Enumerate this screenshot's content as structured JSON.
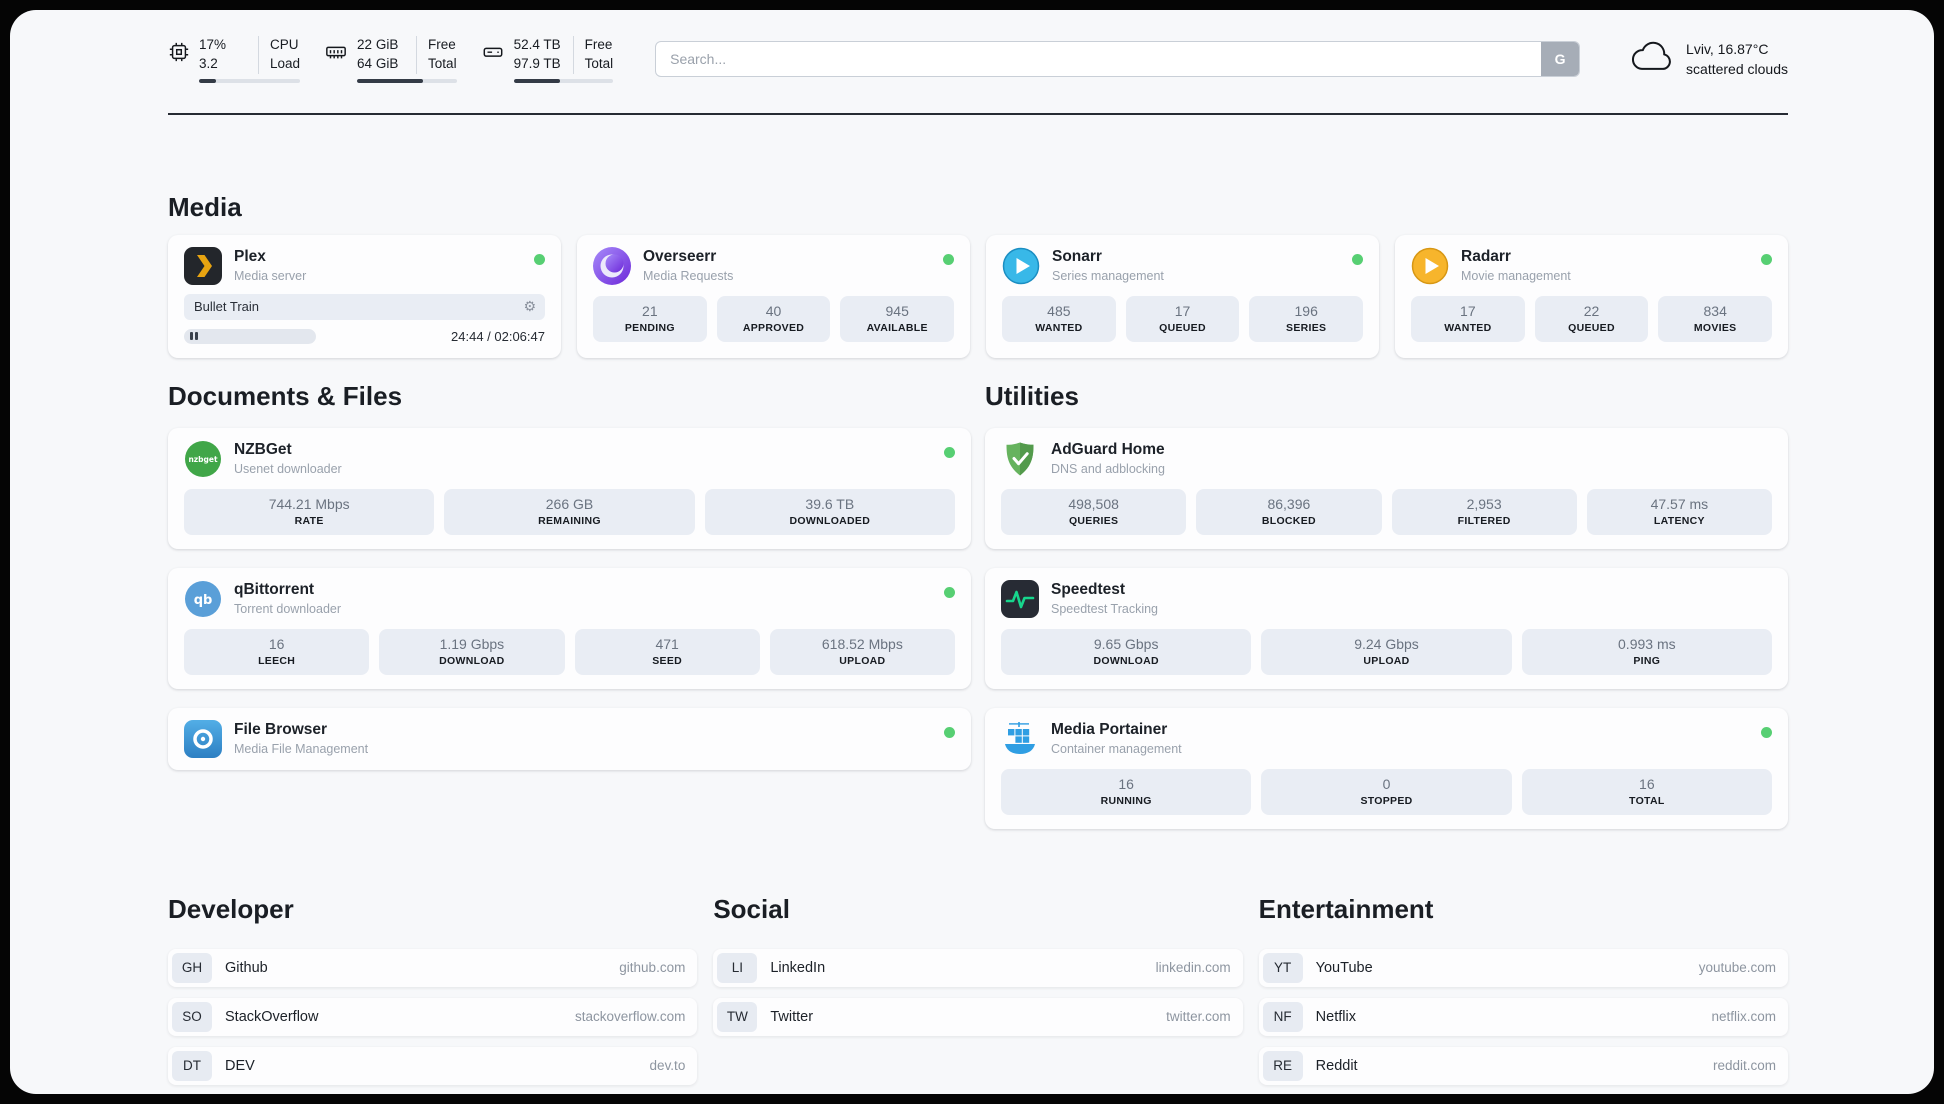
{
  "topbar": {
    "cpu": {
      "icon": "cpu-chip-icon",
      "value_top": "17%",
      "value_bottom": "3.2",
      "label_top": "CPU",
      "label_bottom": "Load",
      "progress": 17
    },
    "memory": {
      "icon": "ram-icon",
      "value_top": "22 GiB",
      "value_bottom": "64 GiB",
      "label_top": "Free",
      "label_bottom": "Total",
      "progress": 66
    },
    "disk": {
      "icon": "hard-disk-icon",
      "value_top": "52.4 TB",
      "value_bottom": "97.9 TB",
      "label_top": "Free",
      "label_bottom": "Total",
      "progress": 47
    },
    "search": {
      "placeholder": "Search...",
      "engine_button": "G"
    },
    "weather": {
      "icon": "cloud-icon",
      "location": "Lviv, 16.87°C",
      "condition": "scattered clouds"
    }
  },
  "sections": {
    "media": "Media",
    "documents": "Documents & Files",
    "utilities": "Utilities"
  },
  "apps": {
    "plex": {
      "name": "Plex",
      "desc": "Media server",
      "now_playing": "Bullet Train",
      "time": "24:44 / 02:06:47"
    },
    "overseerr": {
      "name": "Overseerr",
      "desc": "Media Requests",
      "stats": [
        {
          "value": "21",
          "label": "PENDING"
        },
        {
          "value": "40",
          "label": "APPROVED"
        },
        {
          "value": "945",
          "label": "AVAILABLE"
        }
      ]
    },
    "sonarr": {
      "name": "Sonarr",
      "desc": "Series management",
      "stats": [
        {
          "value": "485",
          "label": "WANTED"
        },
        {
          "value": "17",
          "label": "QUEUED"
        },
        {
          "value": "196",
          "label": "SERIES"
        }
      ]
    },
    "radarr": {
      "name": "Radarr",
      "desc": "Movie management",
      "stats": [
        {
          "value": "17",
          "label": "WANTED"
        },
        {
          "value": "22",
          "label": "QUEUED"
        },
        {
          "value": "834",
          "label": "MOVIES"
        }
      ]
    },
    "nzbget": {
      "name": "NZBGet",
      "desc": "Usenet downloader",
      "stats": [
        {
          "value": "744.21 Mbps",
          "label": "RATE"
        },
        {
          "value": "266 GB",
          "label": "REMAINING"
        },
        {
          "value": "39.6 TB",
          "label": "DOWNLOADED"
        }
      ]
    },
    "qbittorrent": {
      "name": "qBittorrent",
      "desc": "Torrent downloader",
      "stats": [
        {
          "value": "16",
          "label": "LEECH"
        },
        {
          "value": "1.19 Gbps",
          "label": "DOWNLOAD"
        },
        {
          "value": "471",
          "label": "SEED"
        },
        {
          "value": "618.52 Mbps",
          "label": "UPLOAD"
        }
      ]
    },
    "filebrowser": {
      "name": "File Browser",
      "desc": "Media File Management"
    },
    "adguard": {
      "name": "AdGuard Home",
      "desc": "DNS and adblocking",
      "stats": [
        {
          "value": "498,508",
          "label": "QUERIES"
        },
        {
          "value": "86,396",
          "label": "BLOCKED"
        },
        {
          "value": "2,953",
          "label": "FILTERED"
        },
        {
          "value": "47.57 ms",
          "label": "LATENCY"
        }
      ]
    },
    "speedtest": {
      "name": "Speedtest",
      "desc": "Speedtest Tracking",
      "stats": [
        {
          "value": "9.65 Gbps",
          "label": "DOWNLOAD"
        },
        {
          "value": "9.24 Gbps",
          "label": "UPLOAD"
        },
        {
          "value": "0.993 ms",
          "label": "PING"
        }
      ]
    },
    "portainer": {
      "name": "Media Portainer",
      "desc": "Container management",
      "stats": [
        {
          "value": "16",
          "label": "RUNNING"
        },
        {
          "value": "0",
          "label": "STOPPED"
        },
        {
          "value": "16",
          "label": "TOTAL"
        }
      ]
    }
  },
  "links": {
    "developer": {
      "title": "Developer",
      "items": [
        {
          "abbr": "GH",
          "name": "Github",
          "url": "github.com"
        },
        {
          "abbr": "SO",
          "name": "StackOverflow",
          "url": "stackoverflow.com"
        },
        {
          "abbr": "DT",
          "name": "DEV",
          "url": "dev.to"
        }
      ]
    },
    "social": {
      "title": "Social",
      "items": [
        {
          "abbr": "LI",
          "name": "LinkedIn",
          "url": "linkedin.com"
        },
        {
          "abbr": "TW",
          "name": "Twitter",
          "url": "twitter.com"
        }
      ]
    },
    "entertainment": {
      "title": "Entertainment",
      "items": [
        {
          "abbr": "YT",
          "name": "YouTube",
          "url": "youtube.com"
        },
        {
          "abbr": "NF",
          "name": "Netflix",
          "url": "netflix.com"
        },
        {
          "abbr": "RE",
          "name": "Reddit",
          "url": "reddit.com"
        }
      ]
    }
  },
  "colors": {
    "status_online": "#57cf73",
    "stat_box_bg": "#e9edf4",
    "divider": "#262b33",
    "plex": "#e8a411",
    "overseerr": "#7c3aed",
    "sonarr": "#38b8e8",
    "radarr": "#f7b52c",
    "nzbget": "#40a648",
    "qbittorrent": "#5a9fd8",
    "filebrowser": "#3e97d9",
    "adguard": "#66b35e",
    "speedtest_accent": "#17d68d",
    "portainer": "#2f9ee3"
  }
}
